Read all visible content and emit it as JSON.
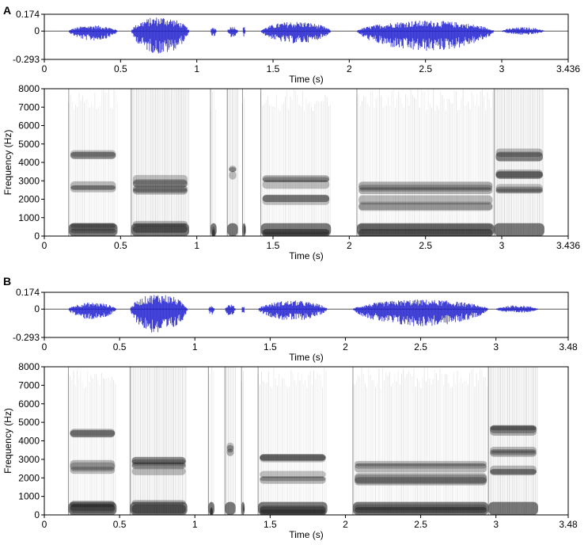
{
  "chart_data": [
    {
      "panel": "A",
      "type": "waveform",
      "ylim": [
        -0.293,
        0.174
      ],
      "y_tick_labels": [
        "0.174",
        "0",
        "-0.293"
      ],
      "xlim": [
        0,
        3.436
      ],
      "x_tick_labels": [
        "0",
        "0.5",
        "1",
        "1.5",
        "2",
        "2.5",
        "3",
        "3.436"
      ],
      "xlabel": "Time (s)",
      "waveform_color": "#1a1acc",
      "segments": [
        {
          "start": 0.16,
          "end": 0.48,
          "amp_top": 0.06,
          "amp_bot": -0.1
        },
        {
          "start": 0.57,
          "end": 0.95,
          "amp_top": 0.15,
          "amp_bot": -0.24
        },
        {
          "start": 1.09,
          "end": 1.13,
          "amp_top": 0.04,
          "amp_bot": -0.06
        },
        {
          "start": 1.2,
          "end": 1.27,
          "amp_top": 0.05,
          "amp_bot": -0.07
        },
        {
          "start": 1.3,
          "end": 1.32,
          "amp_top": 0.05,
          "amp_bot": -0.06
        },
        {
          "start": 1.42,
          "end": 1.88,
          "amp_top": 0.1,
          "amp_bot": -0.13
        },
        {
          "start": 2.05,
          "end": 2.95,
          "amp_top": 0.11,
          "amp_bot": -0.21
        },
        {
          "start": 3.0,
          "end": 3.28,
          "amp_top": 0.04,
          "amp_bot": -0.04
        }
      ]
    },
    {
      "panel": "A",
      "type": "spectrogram",
      "ylim": [
        0,
        8000
      ],
      "y_tick_labels": [
        "0",
        "1000",
        "2000",
        "3000",
        "4000",
        "5000",
        "6000",
        "7000",
        "8000"
      ],
      "xlim": [
        0,
        3.436
      ],
      "x_tick_labels": [
        "0",
        "0.5",
        "1",
        "1.5",
        "2",
        "2.5",
        "3",
        "3.436"
      ],
      "xlabel": "Time (s)",
      "ylabel": "Frequency (Hz)",
      "segments": [
        {
          "start": 0.16,
          "end": 0.48,
          "formants": [
            400,
            2600,
            4500
          ],
          "fric": false
        },
        {
          "start": 0.57,
          "end": 0.95,
          "formants": [
            500,
            2500,
            3000
          ],
          "fric": true
        },
        {
          "start": 1.09,
          "end": 1.13,
          "formants": [
            300
          ],
          "fric": false
        },
        {
          "start": 1.2,
          "end": 1.27,
          "formants": [
            3500
          ],
          "fric": true
        },
        {
          "start": 1.3,
          "end": 1.32,
          "formants": [
            300
          ],
          "fric": false
        },
        {
          "start": 1.42,
          "end": 1.88,
          "formants": [
            300,
            2000,
            3000
          ],
          "fric": false
        },
        {
          "start": 2.05,
          "end": 2.95,
          "formants": [
            300,
            1800,
            2600
          ],
          "fric": false
        },
        {
          "start": 2.95,
          "end": 3.28,
          "formants": [
            2500,
            3500,
            4500
          ],
          "fric": true
        }
      ]
    },
    {
      "panel": "B",
      "type": "waveform",
      "ylim": [
        -0.293,
        0.174
      ],
      "y_tick_labels": [
        "0.174",
        "0",
        "-0.293"
      ],
      "xlim": [
        0,
        3.48
      ],
      "x_tick_labels": [
        "0",
        "0.5",
        "1",
        "1.5",
        "2",
        "2.5",
        "3",
        "3.48"
      ],
      "xlabel": "Time (s)",
      "waveform_color": "#1a1acc",
      "segments": [
        {
          "start": 0.16,
          "end": 0.48,
          "amp_top": 0.07,
          "amp_bot": -0.11
        },
        {
          "start": 0.57,
          "end": 0.95,
          "amp_top": 0.16,
          "amp_bot": -0.26
        },
        {
          "start": 1.09,
          "end": 1.13,
          "amp_top": 0.04,
          "amp_bot": -0.06
        },
        {
          "start": 1.2,
          "end": 1.27,
          "amp_top": 0.05,
          "amp_bot": -0.07
        },
        {
          "start": 1.31,
          "end": 1.33,
          "amp_top": 0.04,
          "amp_bot": -0.06
        },
        {
          "start": 1.42,
          "end": 1.88,
          "amp_top": 0.09,
          "amp_bot": -0.12
        },
        {
          "start": 2.05,
          "end": 2.95,
          "amp_top": 0.1,
          "amp_bot": -0.18
        },
        {
          "start": 3.0,
          "end": 3.28,
          "amp_top": 0.04,
          "amp_bot": -0.04
        }
      ]
    },
    {
      "panel": "B",
      "type": "spectrogram",
      "ylim": [
        0,
        8000
      ],
      "y_tick_labels": [
        "0",
        "1000",
        "2000",
        "3000",
        "4000",
        "5000",
        "6000",
        "7000",
        "8000"
      ],
      "xlim": [
        0,
        3.48
      ],
      "x_tick_labels": [
        "0",
        "0.5",
        "1",
        "1.5",
        "2",
        "2.5",
        "3",
        "3.48"
      ],
      "xlabel": "Time (s)",
      "ylabel": "Frequency (Hz)",
      "segments": [
        {
          "start": 0.16,
          "end": 0.48,
          "formants": [
            400,
            2600,
            4500
          ],
          "fric": false
        },
        {
          "start": 0.57,
          "end": 0.95,
          "formants": [
            500,
            2500,
            3000
          ],
          "fric": true
        },
        {
          "start": 1.09,
          "end": 1.13,
          "formants": [
            300
          ],
          "fric": false
        },
        {
          "start": 1.2,
          "end": 1.27,
          "formants": [
            3500
          ],
          "fric": true
        },
        {
          "start": 1.31,
          "end": 1.33,
          "formants": [
            300
          ],
          "fric": false
        },
        {
          "start": 1.42,
          "end": 1.88,
          "formants": [
            300,
            2000,
            3000
          ],
          "fric": false
        },
        {
          "start": 2.05,
          "end": 2.95,
          "formants": [
            300,
            1800,
            2600
          ],
          "fric": false
        },
        {
          "start": 2.95,
          "end": 3.28,
          "formants": [
            2500,
            3500,
            4500
          ],
          "fric": true
        }
      ]
    }
  ],
  "panels": {
    "A": {
      "label": "A"
    },
    "B": {
      "label": "B"
    }
  }
}
